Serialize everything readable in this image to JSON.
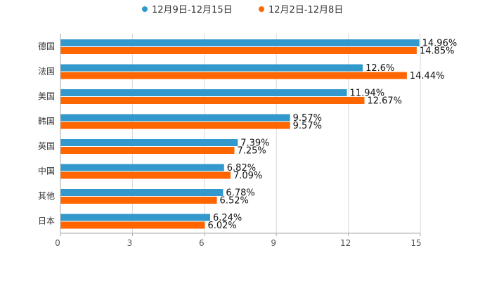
{
  "chart_data": {
    "type": "bar",
    "orientation": "horizontal",
    "categories": [
      "德国",
      "法国",
      "美国",
      "韩国",
      "英国",
      "中国",
      "其他",
      "日本"
    ],
    "series": [
      {
        "name": "12月9日-12月15日",
        "color": "#3399cc",
        "values": [
          14.96,
          12.6,
          11.94,
          9.57,
          7.39,
          6.82,
          6.78,
          6.24
        ],
        "labels": [
          "14.96%",
          "12.6%",
          "11.94%",
          "9.57%",
          "7.39%",
          "6.82%",
          "6.78%",
          "6.24%"
        ]
      },
      {
        "name": "12月2日-12月8日",
        "color": "#ff6600",
        "values": [
          14.85,
          14.44,
          12.67,
          9.57,
          7.25,
          7.09,
          6.52,
          6.02
        ],
        "labels": [
          "14.85%",
          "14.44%",
          "12.67%",
          "9.57%",
          "7.25%",
          "7.09%",
          "6.52%",
          "6.02%"
        ]
      }
    ],
    "xlim": [
      0,
      15
    ],
    "ticks": [
      0,
      3,
      6,
      9,
      12,
      15
    ],
    "tick_labels": [
      "0",
      "3",
      "6",
      "9",
      "12",
      "15"
    ],
    "grid": true,
    "legend_position": "top-center",
    "title": "",
    "xlabel": "",
    "ylabel": ""
  }
}
